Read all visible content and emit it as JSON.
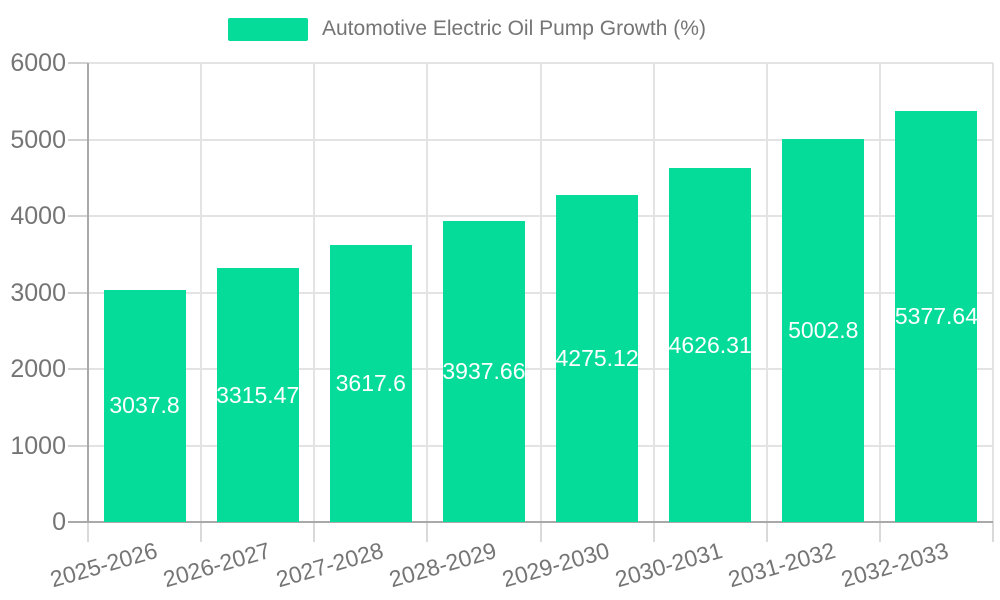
{
  "chart_data": {
    "type": "bar",
    "title": "Automotive Electric Oil Pump Growth (%)",
    "categories": [
      "2025-2026",
      "2026-2027",
      "2027-2028",
      "2028-2029",
      "2029-2030",
      "2030-2031",
      "2031-2032",
      "2032-2033"
    ],
    "values": [
      3037.8,
      3315.47,
      3617.6,
      3937.66,
      4275.12,
      4626.31,
      5002.8,
      5377.64
    ],
    "value_labels": [
      "3037.8",
      "3315.47",
      "3617.6",
      "3937.66",
      "4275.12",
      "4626.31",
      "5002.8",
      "5377.64"
    ],
    "xlabel": "",
    "ylabel": "",
    "ylim": [
      0,
      6000
    ],
    "yticks": [
      0,
      1000,
      2000,
      3000,
      4000,
      5000,
      6000
    ],
    "ytick_labels": [
      "0",
      "1000",
      "2000",
      "3000",
      "4000",
      "5000",
      "6000"
    ],
    "grid": true,
    "legend_position": "top-center",
    "value_label_position": "inside-center",
    "colors": {
      "bar": "#05dc99",
      "value_label": "#ffffff",
      "axis_text": "#757575",
      "grid": "#e3e3e3",
      "axis_line": "#a9a9a9",
      "tick": "#d9d9d9",
      "background": "#ffffff"
    }
  }
}
